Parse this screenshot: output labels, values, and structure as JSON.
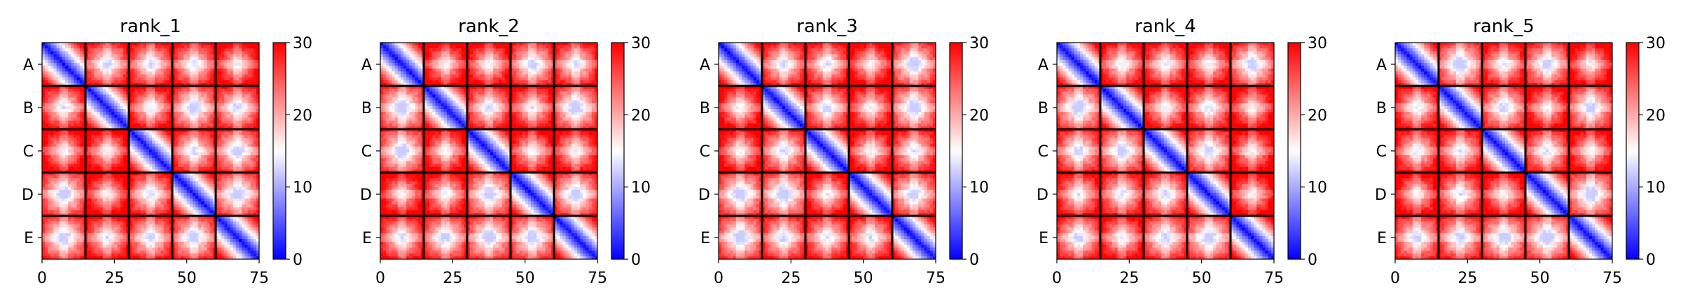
{
  "chart_data": {
    "type": "heatmap",
    "panels": [
      {
        "title": "rank_1"
      },
      {
        "title": "rank_2"
      },
      {
        "title": "rank_3"
      },
      {
        "title": "rank_4"
      },
      {
        "title": "rank_5"
      }
    ],
    "y_tick_labels": [
      "A",
      "B",
      "C",
      "D",
      "E"
    ],
    "x_ticks": [
      0,
      25,
      50,
      75
    ],
    "xlim": [
      0,
      75
    ],
    "matrix_size": 75,
    "block_size": 15,
    "colorbar": {
      "range": [
        0,
        30
      ],
      "ticks": [
        0,
        10,
        20,
        30
      ],
      "colormap": "bwr",
      "colors": {
        "low": "#0000ff",
        "mid": "#ffffff",
        "high": "#ff0000"
      }
    },
    "description_of_values": "pairwise distance-like matrix; near 0 (blue) along diagonal within each 15x15 block, rising to ~30 (red) away from diagonal; off-diagonal blocks mostly 15-30 with lighter cross patterns",
    "block_boundary_color": "#000000"
  }
}
